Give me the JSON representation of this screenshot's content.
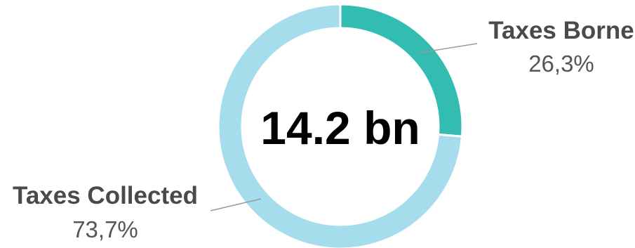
{
  "chart_data": {
    "type": "pie",
    "donut": true,
    "center_label": "14.2 bn",
    "slices": [
      {
        "label": "Taxes Borne",
        "value": 26.3,
        "display": "26,3%",
        "color": "#33bcb2"
      },
      {
        "label": "Taxes Collected",
        "value": 73.7,
        "display": "73,7%",
        "color": "#a6dded"
      }
    ],
    "leader_line_color": "#9a9a9a",
    "legend": "none"
  }
}
